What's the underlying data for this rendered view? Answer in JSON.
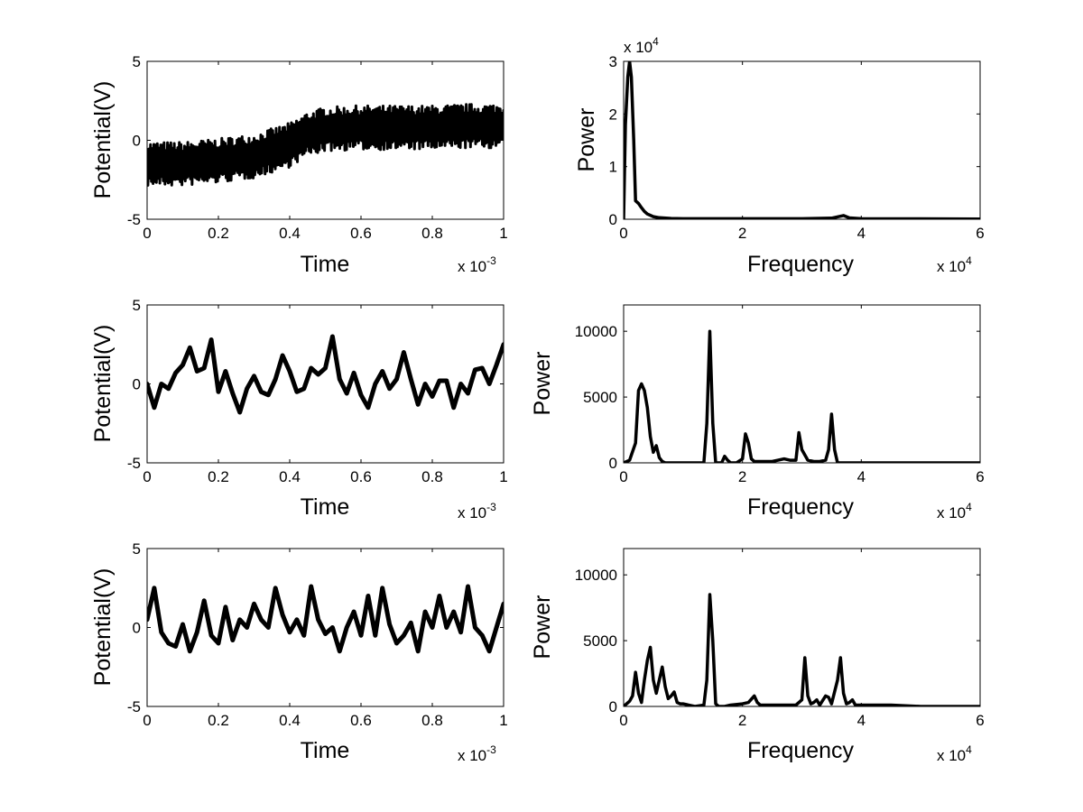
{
  "figure": {
    "layout": "3 rows x 2 columns",
    "colors": {
      "trace": "#000000",
      "background": "#ffffff",
      "axes": "#000000"
    }
  },
  "chart_data": [
    {
      "id": "time1",
      "type": "line",
      "style": "noise-band",
      "xlabel": "Time",
      "ylabel": "Potential(V)",
      "xlim": [
        0,
        0.001
      ],
      "ylim": [
        -5,
        5
      ],
      "xticks": [
        0,
        0.0002,
        0.0004,
        0.0006,
        0.0008,
        0.001
      ],
      "xtick_labels": [
        "0",
        "0.2",
        "0.4",
        "0.6",
        "0.8",
        "1"
      ],
      "yticks": [
        -5,
        0,
        5
      ],
      "ytick_labels": [
        "-5",
        "0",
        "5"
      ],
      "x_multiplier": {
        "base": "x 10",
        "exponent": "-3"
      },
      "series": [
        {
          "name": "signal",
          "x": [
            0,
            0.0001,
            0.0002,
            0.0003,
            0.0004,
            0.00045,
            0.0005,
            0.0006,
            0.0007,
            0.0008,
            0.0009,
            0.001
          ],
          "y": [
            -1.5,
            -1.5,
            -1.3,
            -1.0,
            -0.3,
            0.4,
            0.7,
            0.8,
            0.8,
            0.8,
            0.9,
            0.9
          ],
          "band": 1.4
        }
      ]
    },
    {
      "id": "spec1",
      "type": "line",
      "xlabel": "Frequency",
      "ylabel": "Power",
      "xlim": [
        0,
        60000
      ],
      "ylim": [
        0,
        30000
      ],
      "xticks": [
        0,
        20000,
        40000,
        60000
      ],
      "xtick_labels": [
        "0",
        "2",
        "4",
        "6"
      ],
      "yticks": [
        0,
        10000,
        20000,
        30000
      ],
      "ytick_labels": [
        "0",
        "1",
        "2",
        "3"
      ],
      "x_multiplier": {
        "base": "x 10",
        "exponent": "4"
      },
      "y_multiplier": {
        "base": "x 10",
        "exponent": "4"
      },
      "series": [
        {
          "name": "power",
          "x": [
            0,
            300,
            700,
            1000,
            1300,
            1700,
            2000,
            2500,
            3000,
            3500,
            4000,
            5000,
            6000,
            8000,
            10000,
            20000,
            30000,
            35000,
            37000,
            38000,
            40000,
            50000,
            60000
          ],
          "y": [
            0,
            18000,
            27000,
            30000,
            27000,
            15000,
            3500,
            3000,
            2200,
            1500,
            1000,
            500,
            300,
            150,
            100,
            100,
            100,
            200,
            700,
            250,
            100,
            80,
            60
          ]
        }
      ]
    },
    {
      "id": "time2",
      "type": "line",
      "style": "thick",
      "xlabel": "Time",
      "ylabel": "Potential(V)",
      "xlim": [
        0,
        0.001
      ],
      "ylim": [
        -5,
        5
      ],
      "xticks": [
        0,
        0.0002,
        0.0004,
        0.0006,
        0.0008,
        0.001
      ],
      "xtick_labels": [
        "0",
        "0.2",
        "0.4",
        "0.6",
        "0.8",
        "1"
      ],
      "yticks": [
        -5,
        0,
        5
      ],
      "ytick_labels": [
        "-5",
        "0",
        "5"
      ],
      "x_multiplier": {
        "base": "x 10",
        "exponent": "-3"
      },
      "series": [
        {
          "name": "signal",
          "x": [
            0,
            2e-05,
            4e-05,
            6e-05,
            8e-05,
            0.0001,
            0.00012,
            0.00014,
            0.00016,
            0.00018,
            0.0002,
            0.00022,
            0.00024,
            0.00026,
            0.00028,
            0.0003,
            0.00032,
            0.00034,
            0.00036,
            0.00038,
            0.0004,
            0.00042,
            0.00044,
            0.00046,
            0.00048,
            0.0005,
            0.00052,
            0.00054,
            0.00056,
            0.00058,
            0.0006,
            0.00062,
            0.00064,
            0.00066,
            0.00068,
            0.0007,
            0.00072,
            0.00074,
            0.00076,
            0.00078,
            0.0008,
            0.00082,
            0.00084,
            0.00086,
            0.00088,
            0.0009,
            0.00092,
            0.00094,
            0.00096,
            0.00098,
            0.001
          ],
          "y": [
            0,
            -1.5,
            0,
            -0.3,
            0.7,
            1.2,
            2.3,
            0.8,
            1.0,
            2.8,
            -0.5,
            0.8,
            -0.6,
            -1.8,
            -0.3,
            0.5,
            -0.5,
            -0.7,
            0.3,
            1.8,
            0.8,
            -0.5,
            -0.3,
            1.0,
            0.6,
            1.0,
            3.0,
            0.3,
            -0.6,
            0.7,
            -0.7,
            -1.5,
            0.0,
            0.8,
            -0.3,
            0.3,
            2.0,
            0.3,
            -1.3,
            0.0,
            -0.8,
            0.2,
            0.2,
            -1.5,
            0.0,
            -0.6,
            0.9,
            1.0,
            0.0,
            1.2,
            2.5
          ]
        }
      ]
    },
    {
      "id": "spec2",
      "type": "line",
      "xlabel": "Frequency",
      "ylabel": "Power",
      "xlim": [
        0,
        60000
      ],
      "ylim": [
        0,
        12000
      ],
      "xticks": [
        0,
        20000,
        40000,
        60000
      ],
      "xtick_labels": [
        "0",
        "2",
        "4",
        "6"
      ],
      "yticks": [
        0,
        5000,
        10000
      ],
      "ytick_labels": [
        "0",
        "5000",
        "10000"
      ],
      "x_multiplier": {
        "base": "x 10",
        "exponent": "4"
      },
      "series": [
        {
          "name": "power",
          "x": [
            0,
            1000,
            2000,
            2500,
            3000,
            3500,
            4000,
            4500,
            5000,
            5500,
            6000,
            6500,
            7000,
            8000,
            10000,
            12000,
            13500,
            14000,
            14500,
            15000,
            15500,
            16000,
            16500,
            17000,
            17500,
            18000,
            19000,
            20000,
            20500,
            21000,
            21500,
            22000,
            25000,
            27000,
            28000,
            29000,
            29500,
            30000,
            31000,
            32000,
            33000,
            34000,
            34500,
            35000,
            35500,
            36000,
            37000,
            40000,
            50000,
            60000
          ],
          "y": [
            0,
            200,
            1500,
            5500,
            6000,
            5500,
            4200,
            2000,
            800,
            1300,
            400,
            100,
            0,
            0,
            0,
            0,
            0,
            3000,
            10000,
            3000,
            0,
            0,
            0,
            500,
            200,
            0,
            0,
            300,
            2200,
            1500,
            300,
            100,
            100,
            300,
            200,
            200,
            2300,
            1000,
            200,
            100,
            100,
            200,
            1000,
            3700,
            1000,
            0,
            0,
            0,
            0,
            0
          ]
        }
      ]
    },
    {
      "id": "time3",
      "type": "line",
      "style": "thick",
      "xlabel": "Time",
      "ylabel": "Potential(V)",
      "xlim": [
        0,
        0.001
      ],
      "ylim": [
        -5,
        5
      ],
      "xticks": [
        0,
        0.0002,
        0.0004,
        0.0006,
        0.0008,
        0.001
      ],
      "xtick_labels": [
        "0",
        "0.2",
        "0.4",
        "0.6",
        "0.8",
        "1"
      ],
      "yticks": [
        -5,
        0,
        5
      ],
      "ytick_labels": [
        "-5",
        "0",
        "5"
      ],
      "x_multiplier": {
        "base": "x 10",
        "exponent": "-3"
      },
      "series": [
        {
          "name": "signal",
          "x": [
            0,
            2e-05,
            4e-05,
            6e-05,
            8e-05,
            0.0001,
            0.00012,
            0.00014,
            0.00016,
            0.00018,
            0.0002,
            0.00022,
            0.00024,
            0.00026,
            0.00028,
            0.0003,
            0.00032,
            0.00034,
            0.00036,
            0.00038,
            0.0004,
            0.00042,
            0.00044,
            0.00046,
            0.00048,
            0.0005,
            0.00052,
            0.00054,
            0.00056,
            0.00058,
            0.0006,
            0.00062,
            0.00064,
            0.00066,
            0.00068,
            0.0007,
            0.00072,
            0.00074,
            0.00076,
            0.00078,
            0.0008,
            0.00082,
            0.00084,
            0.00086,
            0.00088,
            0.0009,
            0.00092,
            0.00094,
            0.00096,
            0.00098,
            0.001
          ],
          "y": [
            0.5,
            2.5,
            -0.3,
            -1.0,
            -1.2,
            0.2,
            -1.5,
            -0.3,
            1.7,
            -0.5,
            -1.0,
            1.3,
            -0.8,
            0.5,
            0.0,
            1.5,
            0.5,
            0.0,
            2.5,
            0.8,
            -0.3,
            0.5,
            -0.5,
            2.6,
            0.5,
            -0.4,
            0.0,
            -1.5,
            0.0,
            1.0,
            -0.5,
            2.0,
            -0.5,
            2.5,
            0.2,
            -1.0,
            -0.5,
            0.3,
            -1.5,
            1.0,
            0.0,
            2.0,
            0.0,
            1.0,
            -0.3,
            2.6,
            0.0,
            -0.5,
            -1.5,
            0.0,
            1.5
          ]
        }
      ]
    },
    {
      "id": "spec3",
      "type": "line",
      "xlabel": "Frequency",
      "ylabel": "Power",
      "xlim": [
        0,
        60000
      ],
      "ylim": [
        0,
        12000
      ],
      "xticks": [
        0,
        20000,
        40000,
        60000
      ],
      "xtick_labels": [
        "0",
        "2",
        "4",
        "6"
      ],
      "yticks": [
        0,
        5000,
        10000
      ],
      "ytick_labels": [
        "0",
        "5000",
        "10000"
      ],
      "x_multiplier": {
        "base": "x 10",
        "exponent": "4"
      },
      "series": [
        {
          "name": "power",
          "x": [
            0,
            1000,
            1500,
            2000,
            2500,
            3000,
            3500,
            4000,
            4500,
            5000,
            5500,
            6000,
            6500,
            7000,
            7500,
            8000,
            8500,
            9000,
            9500,
            10000,
            12000,
            13500,
            14000,
            14500,
            15000,
            15500,
            16000,
            17000,
            18000,
            20000,
            21000,
            22000,
            22500,
            23000,
            28000,
            29000,
            30000,
            30500,
            31000,
            31500,
            32000,
            32500,
            33000,
            34000,
            34500,
            35000,
            36000,
            36500,
            37000,
            37500,
            38000,
            38500,
            39000,
            40000,
            45000,
            50000,
            60000
          ],
          "y": [
            0,
            400,
            800,
            2600,
            1000,
            300,
            2000,
            3500,
            4500,
            2000,
            1000,
            2000,
            3000,
            1500,
            600,
            800,
            1100,
            300,
            200,
            200,
            0,
            100,
            2000,
            8500,
            5000,
            200,
            0,
            0,
            100,
            200,
            300,
            800,
            300,
            100,
            100,
            100,
            500,
            3700,
            800,
            200,
            300,
            500,
            100,
            800,
            700,
            200,
            2000,
            3700,
            1000,
            200,
            300,
            500,
            100,
            100,
            100,
            0,
            0
          ]
        }
      ]
    }
  ]
}
